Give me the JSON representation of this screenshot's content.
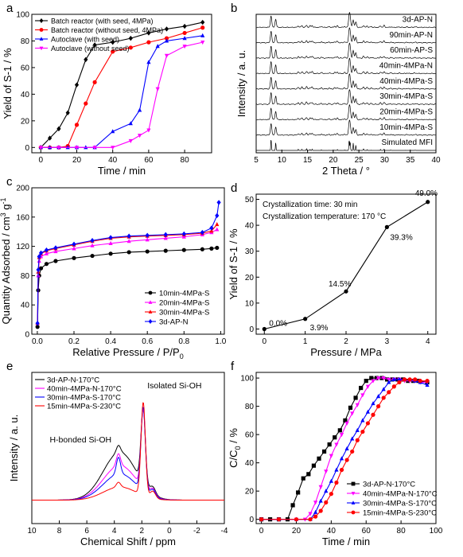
{
  "figure": {
    "panels": [
      {
        "key": "a",
        "label": "a"
      },
      {
        "key": "b",
        "label": "b"
      },
      {
        "key": "c",
        "label": "c"
      },
      {
        "key": "d",
        "label": "d"
      },
      {
        "key": "e",
        "label": "e"
      },
      {
        "key": "f",
        "label": "f"
      }
    ]
  },
  "chart_data": [
    {
      "panel": "a",
      "type": "line",
      "xlabel": "Time / min",
      "ylabel": "Yield of S-1 / %",
      "xlim": [
        -5,
        95
      ],
      "ylim": [
        -4,
        100
      ],
      "xticks": [
        0,
        20,
        40,
        60,
        80
      ],
      "yticks": [
        0,
        20,
        40,
        60,
        80,
        100
      ],
      "legend_position": "top-left",
      "series": [
        {
          "name": "Batch reactor (with seed, 4MPa)",
          "color": "#000000",
          "marker": "diamond",
          "x": [
            0,
            5,
            10,
            15,
            20,
            25,
            30,
            40,
            50,
            60,
            70,
            80,
            90
          ],
          "y": [
            0,
            7,
            14,
            26,
            47,
            66,
            77,
            79,
            82,
            86,
            89,
            91,
            94
          ]
        },
        {
          "name": "Batch reactor (without seed, 4MPa)",
          "color": "#ff0000",
          "marker": "circle",
          "x": [
            0,
            5,
            10,
            15,
            20,
            25,
            30,
            40,
            50,
            60,
            70,
            80,
            90
          ],
          "y": [
            0,
            0,
            0,
            1,
            17,
            33,
            49,
            72,
            75,
            79,
            82,
            86,
            90
          ]
        },
        {
          "name": "Autoclave (with seed)",
          "color": "#0000ff",
          "marker": "triangle",
          "x": [
            0,
            5,
            10,
            15,
            20,
            25,
            30,
            40,
            50,
            55,
            60,
            65,
            70,
            80,
            90
          ],
          "y": [
            0,
            0,
            0,
            0,
            0,
            0,
            0,
            12,
            18,
            28,
            64,
            76,
            80,
            82,
            84
          ]
        },
        {
          "name": "Autoclave (without seed)",
          "color": "#ff00ff",
          "marker": "triangle-down",
          "x": [
            0,
            10,
            20,
            30,
            40,
            50,
            55,
            60,
            65,
            70,
            80,
            90
          ],
          "y": [
            0,
            0,
            0,
            0,
            0,
            5,
            9,
            13,
            44,
            69,
            76,
            79
          ]
        }
      ]
    },
    {
      "panel": "b",
      "type": "line",
      "xlabel": "2 Theta / °",
      "ylabel": "Intensity / a. u.",
      "xlim": [
        5,
        40
      ],
      "xticks": [
        5,
        10,
        15,
        20,
        25,
        30,
        35,
        40
      ],
      "series": [
        {
          "name": "3d-AP-N"
        },
        {
          "name": "90min-AP-N"
        },
        {
          "name": "60min-AP-S"
        },
        {
          "name": "40min-4MPa-N"
        },
        {
          "name": "40min-4MPa-S"
        },
        {
          "name": "30min-4MPa-S"
        },
        {
          "name": "20min-4MPa-S"
        },
        {
          "name": "10min-4MPa-S"
        },
        {
          "name": "Simulated MFI"
        }
      ]
    },
    {
      "panel": "c",
      "type": "line",
      "xlabel": "Relative Pressure / P/P",
      "xlabel_sub": "0",
      "ylabel": "Quantity Adsorbed / cm",
      "ylabel_sup1": "3",
      "ylabel_mid": " g",
      "ylabel_sup2": "-1",
      "xlim": [
        -0.03,
        1.02
      ],
      "ylim": [
        0,
        200
      ],
      "xticks": [
        0.0,
        0.2,
        0.4,
        0.6,
        0.8,
        1.0
      ],
      "yticks": [
        0,
        40,
        80,
        120,
        160,
        200
      ],
      "legend_position": "bottom-right",
      "series": [
        {
          "name": "10min-4MPa-S",
          "color": "#000000",
          "marker": "circle",
          "x": [
            0.001,
            0.005,
            0.01,
            0.02,
            0.05,
            0.1,
            0.2,
            0.3,
            0.4,
            0.5,
            0.6,
            0.7,
            0.8,
            0.9,
            0.95,
            0.98
          ],
          "y": [
            10,
            60,
            80,
            90,
            96,
            100,
            104,
            107,
            110,
            112,
            113,
            114,
            115,
            116,
            117,
            118
          ]
        },
        {
          "name": "20min-4MPa-S",
          "color": "#ff00ff",
          "marker": "triangle",
          "x": [
            0.001,
            0.005,
            0.01,
            0.02,
            0.05,
            0.1,
            0.2,
            0.3,
            0.4,
            0.5,
            0.6,
            0.7,
            0.8,
            0.9,
            0.95,
            0.98
          ],
          "y": [
            15,
            80,
            100,
            106,
            110,
            113,
            117,
            121,
            124,
            127,
            129,
            131,
            133,
            136,
            139,
            143
          ]
        },
        {
          "name": "30min-4MPa-S",
          "color": "#ff0000",
          "marker": "triangle",
          "x": [
            0.001,
            0.005,
            0.01,
            0.02,
            0.05,
            0.1,
            0.2,
            0.3,
            0.4,
            0.5,
            0.6,
            0.7,
            0.8,
            0.9,
            0.95,
            0.98
          ],
          "y": [
            15,
            85,
            105,
            110,
            114,
            117,
            122,
            127,
            131,
            133,
            134,
            135,
            136,
            138,
            141,
            150
          ]
        },
        {
          "name": "3d-AP-N",
          "color": "#0000ff",
          "marker": "diamond",
          "x": [
            0.001,
            0.005,
            0.01,
            0.02,
            0.05,
            0.1,
            0.2,
            0.3,
            0.4,
            0.5,
            0.6,
            0.7,
            0.8,
            0.9,
            0.95,
            0.98,
            0.99
          ],
          "y": [
            15,
            88,
            106,
            111,
            115,
            118,
            123,
            128,
            132,
            134,
            135,
            136,
            137,
            139,
            145,
            162,
            180
          ]
        }
      ]
    },
    {
      "panel": "d",
      "type": "line",
      "xlabel": "Pressure / MPa",
      "ylabel": "Yield of S-1 / %",
      "xlim": [
        -0.2,
        4.2
      ],
      "ylim": [
        -2,
        52
      ],
      "xticks": [
        0,
        1,
        2,
        3,
        4
      ],
      "yticks": [
        0,
        10,
        20,
        30,
        40,
        50
      ],
      "annotations": [
        "Crystallization time: 30 min",
        "Crystallization temperature: 170 °C"
      ],
      "series": [
        {
          "color": "#000000",
          "marker": "circle",
          "x": [
            0,
            1,
            2,
            3,
            4
          ],
          "y": [
            0.0,
            3.9,
            14.5,
            39.3,
            49.0
          ],
          "labels": [
            "0.0%",
            "3.9%",
            "14.5%",
            "39.3%",
            "49.0%"
          ]
        }
      ]
    },
    {
      "panel": "e",
      "type": "line",
      "xlabel": "Chemical Shift / ppm",
      "ylabel": "Intensity / a. u.",
      "xlim": [
        10,
        -4
      ],
      "xticks": [
        10,
        8,
        6,
        4,
        2,
        0,
        -2,
        -4
      ],
      "x_reversed": true,
      "annotations": [
        "Isolated Si-OH",
        "H-bonded Si-OH"
      ],
      "series": [
        {
          "name": "3d-AP-N-170°C",
          "color": "#000000"
        },
        {
          "name": "40min-4MPa-N-170°C",
          "color": "#ff00ff"
        },
        {
          "name": "30min-4MPa-S-170°C",
          "color": "#0000ff"
        },
        {
          "name": "15min-4MPa-S-230°C",
          "color": "#ff0000"
        }
      ]
    },
    {
      "panel": "f",
      "type": "line",
      "xlabel": "Time / min",
      "ylabel": "C/C",
      "ylabel_sub": "0",
      "ylabel_tail": " / %",
      "xlim": [
        -3,
        100
      ],
      "ylim": [
        -3,
        104
      ],
      "xticks": [
        0,
        20,
        40,
        60,
        80,
        100
      ],
      "yticks": [
        0,
        20,
        40,
        60,
        80,
        100
      ],
      "legend_position": "bottom-right",
      "series": [
        {
          "name": "3d-AP-N-170°C",
          "color": "#000000",
          "marker": "square",
          "x": [
            0,
            5,
            10,
            15,
            18,
            21,
            24,
            27,
            30,
            33,
            36,
            39,
            42,
            45,
            48,
            51,
            54,
            57,
            60,
            63,
            66,
            69,
            72,
            75,
            78,
            81,
            84,
            87,
            90,
            95
          ],
          "y": [
            0,
            0,
            0,
            0,
            10,
            19,
            29,
            32,
            38,
            43,
            48,
            53,
            58,
            63,
            70,
            79,
            86,
            93,
            98,
            100,
            100,
            100,
            99,
            99,
            99,
            99,
            98,
            98,
            98,
            97
          ]
        },
        {
          "name": "40min-4MPa-N-170°C",
          "color": "#ff00ff",
          "marker": "triangle-down",
          "x": [
            0,
            10,
            20,
            25,
            28,
            31,
            34,
            37,
            40,
            43,
            46,
            49,
            52,
            55,
            58,
            61,
            64,
            67,
            70,
            73,
            76,
            79,
            82,
            85,
            88,
            91,
            95
          ],
          "y": [
            0,
            0,
            0,
            0,
            4,
            12,
            23,
            34,
            45,
            53,
            60,
            68,
            75,
            81,
            88,
            94,
            98,
            100,
            100,
            99,
            99,
            99,
            98,
            98,
            98,
            97,
            97
          ]
        },
        {
          "name": "30min-4MPa-S-170°C",
          "color": "#0000ff",
          "marker": "triangle",
          "x": [
            0,
            10,
            20,
            28,
            31,
            34,
            37,
            40,
            43,
            46,
            49,
            52,
            55,
            58,
            61,
            64,
            67,
            70,
            73,
            76,
            79,
            82,
            85,
            88,
            91,
            95
          ],
          "y": [
            0,
            0,
            0,
            0,
            5,
            13,
            20,
            27,
            35,
            43,
            50,
            57,
            63,
            70,
            76,
            82,
            87,
            92,
            97,
            99,
            99,
            99,
            99,
            98,
            97,
            95
          ]
        },
        {
          "name": "15min-4MPa-S-230°C",
          "color": "#ff0000",
          "marker": "circle",
          "x": [
            0,
            10,
            20,
            28,
            31,
            34,
            37,
            40,
            43,
            46,
            49,
            52,
            55,
            58,
            61,
            64,
            67,
            70,
            73,
            76,
            79,
            82,
            85,
            88,
            91,
            95
          ],
          "y": [
            0,
            0,
            0,
            0,
            2,
            6,
            12,
            18,
            26,
            35,
            42,
            48,
            56,
            62,
            68,
            74,
            80,
            86,
            90,
            94,
            97,
            99,
            99,
            99,
            98,
            98
          ]
        }
      ]
    }
  ]
}
